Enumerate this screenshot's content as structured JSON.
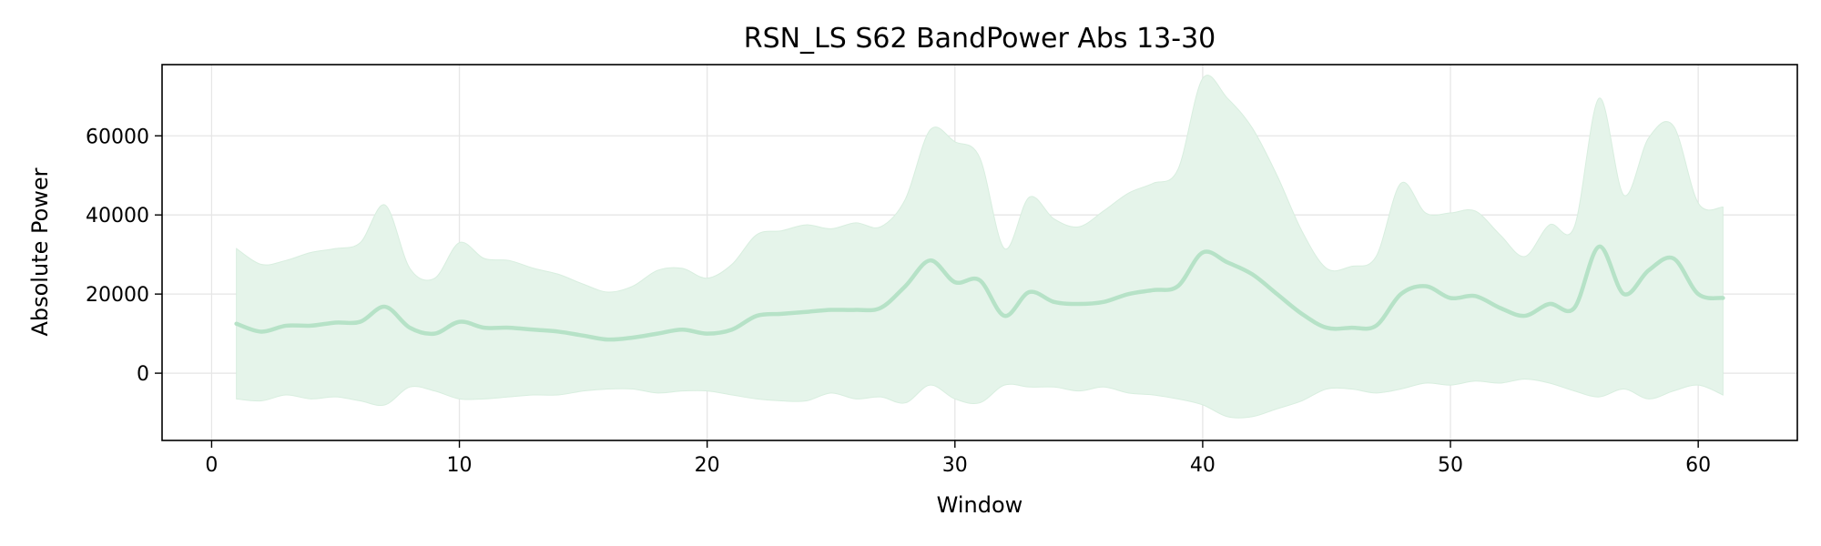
{
  "chart_data": {
    "type": "line",
    "title": "RSN_LS S62 BandPower Abs 13-30",
    "xlabel": "Window",
    "ylabel": "Absolute Power",
    "xlim": [
      -2,
      64
    ],
    "ylim": [
      -17000,
      78000
    ],
    "xticks": [
      0,
      10,
      20,
      30,
      40,
      50,
      60
    ],
    "yticks": [
      0,
      20000,
      40000,
      60000
    ],
    "grid": true,
    "colors": {
      "line": "#b6e2c7",
      "band": "#e5f4ea"
    },
    "x": [
      1,
      2,
      3,
      4,
      5,
      6,
      7,
      8,
      9,
      10,
      11,
      12,
      13,
      14,
      15,
      16,
      17,
      18,
      19,
      20,
      21,
      22,
      23,
      24,
      25,
      26,
      27,
      28,
      29,
      30,
      31,
      32,
      33,
      34,
      35,
      36,
      37,
      38,
      39,
      40,
      41,
      42,
      43,
      44,
      45,
      46,
      47,
      48,
      49,
      50,
      51,
      52,
      53,
      54,
      55,
      56,
      57,
      58,
      59,
      60,
      61
    ],
    "series": [
      {
        "values": [
          12500,
          10500,
          12000,
          12000,
          12800,
          13000,
          16800,
          11500,
          10000,
          13000,
          11500,
          11500,
          11000,
          10500,
          9500,
          8500,
          9000,
          10000,
          11000,
          10000,
          11000,
          14500,
          15000,
          15500,
          16000,
          16000,
          16500,
          22000,
          28500,
          23000,
          23500,
          14500,
          20500,
          18000,
          17500,
          18000,
          20000,
          21000,
          22000,
          30500,
          28000,
          25000,
          20000,
          15000,
          11500,
          11500,
          12000,
          20000,
          22000,
          19000,
          19500,
          16500,
          14500,
          17500,
          16500,
          32000,
          20000,
          26000,
          29000,
          20000,
          19000
        ],
        "upper": [
          31500,
          27500,
          28500,
          30500,
          31500,
          33000,
          42500,
          26500,
          24000,
          33000,
          29000,
          28500,
          26500,
          25000,
          22500,
          20500,
          22000,
          26000,
          26500,
          24000,
          27500,
          35000,
          36000,
          37500,
          36500,
          38000,
          37000,
          44000,
          61500,
          58500,
          54500,
          31500,
          44500,
          39000,
          37000,
          41000,
          45500,
          48000,
          51500,
          74500,
          69500,
          62000,
          50000,
          36000,
          26500,
          27000,
          29500,
          48000,
          40500,
          40500,
          41000,
          35000,
          29500,
          37500,
          37000,
          69500,
          45000,
          59500,
          62500,
          43000,
          42000
        ],
        "lower": [
          -6500,
          -7000,
          -5500,
          -6500,
          -6000,
          -7000,
          -8000,
          -3500,
          -4500,
          -6500,
          -6500,
          -6000,
          -5500,
          -5500,
          -4500,
          -4000,
          -4000,
          -5000,
          -4500,
          -4500,
          -5500,
          -6500,
          -7000,
          -7000,
          -5000,
          -6500,
          -6000,
          -7500,
          -3000,
          -6500,
          -7500,
          -3000,
          -3500,
          -3500,
          -4500,
          -3500,
          -5000,
          -5500,
          -6500,
          -8000,
          -11000,
          -11000,
          -9000,
          -7000,
          -4000,
          -4000,
          -5000,
          -4000,
          -2500,
          -3000,
          -2000,
          -2500,
          -1500,
          -2500,
          -4500,
          -6000,
          -4000,
          -6500,
          -4500,
          -3000,
          -5500
        ]
      }
    ]
  }
}
